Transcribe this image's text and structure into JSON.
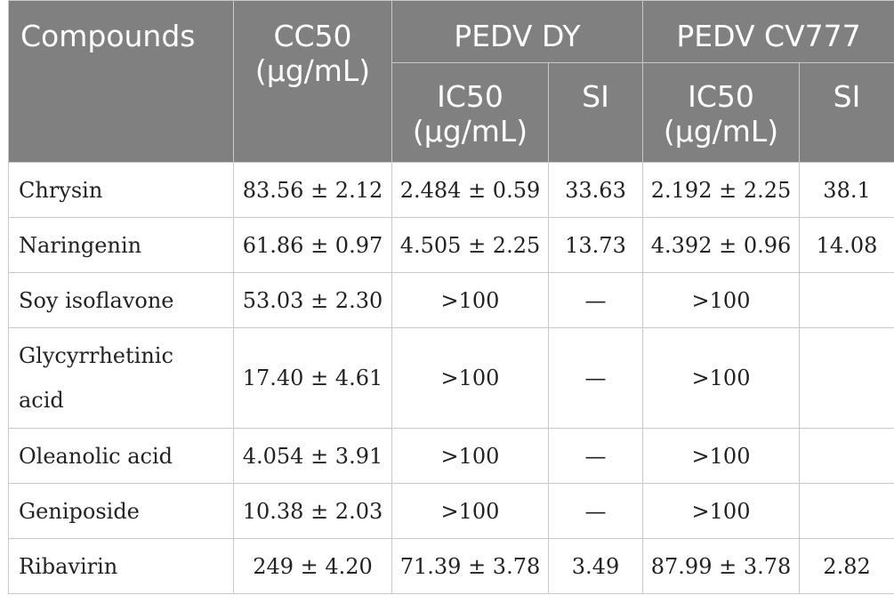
{
  "header": {
    "compounds": "Compounds",
    "cc50": [
      "CC50",
      "(µg/mL)"
    ],
    "group1": "PEDV DY",
    "group2": "PEDV CV777",
    "ic50": [
      "IC50",
      "(µg/mL)"
    ],
    "si": "SI"
  },
  "rows": [
    {
      "name": "Chrysin",
      "cc50": "83.56 ± 2.12",
      "dy_ic50": "2.484 ± 0.59",
      "dy_si": "33.63",
      "cv_ic50": "2.192 ± 2.25",
      "cv_si": "38.1"
    },
    {
      "name": "Naringenin",
      "cc50": "61.86 ± 0.97",
      "dy_ic50": "4.505 ± 2.25",
      "dy_si": "13.73",
      "cv_ic50": "4.392 ± 0.96",
      "cv_si": "14.08"
    },
    {
      "name": "Soy isoflavone",
      "cc50": "53.03 ± 2.30",
      "dy_ic50": ">100",
      "dy_si": "—",
      "cv_ic50": ">100",
      "cv_si": ""
    },
    {
      "name": [
        "Glycyrrhetinic",
        "acid"
      ],
      "cc50": "17.40 ± 4.61",
      "dy_ic50": ">100",
      "dy_si": "—",
      "cv_ic50": ">100",
      "cv_si": ""
    },
    {
      "name": "Oleanolic acid",
      "cc50": "4.054 ± 3.91",
      "dy_ic50": ">100",
      "dy_si": "—",
      "cv_ic50": ">100",
      "cv_si": ""
    },
    {
      "name": "Geniposide",
      "cc50": "10.38 ± 2.03",
      "dy_ic50": ">100",
      "dy_si": "—",
      "cv_ic50": ">100",
      "cv_si": ""
    },
    {
      "name": "Ribavirin",
      "cc50": "249 ± 4.20",
      "dy_ic50": "71.39 ± 3.78",
      "dy_si": "3.49",
      "cv_ic50": "87.99 ± 3.78",
      "cv_si": "2.82"
    }
  ]
}
